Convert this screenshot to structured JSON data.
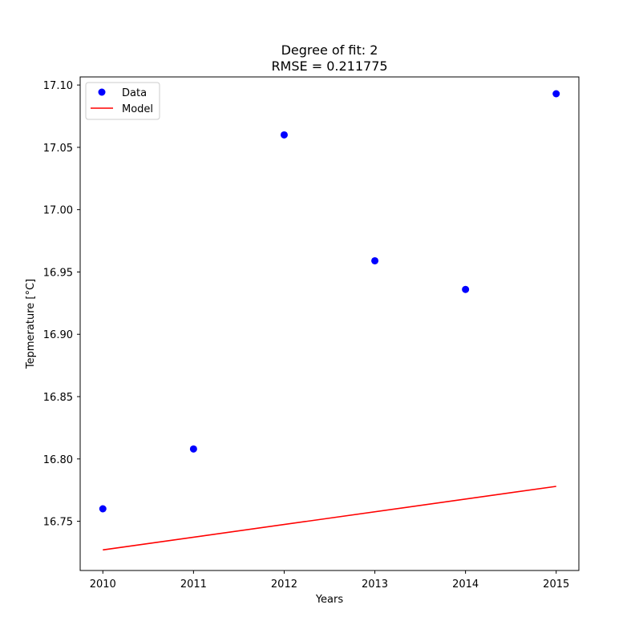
{
  "chart_data": {
    "type": "scatter",
    "title": [
      "Degree of fit: 2",
      "RMSE = 0.211775"
    ],
    "xlabel": "Years",
    "ylabel": "Tepmerature [°C]",
    "xlim": [
      2009.75,
      2015.25
    ],
    "ylim": [
      16.7105,
      17.1065
    ],
    "xticks": [
      2010,
      2011,
      2012,
      2013,
      2014,
      2015
    ],
    "yticks": [
      "16.75",
      "16.80",
      "16.85",
      "16.90",
      "16.95",
      "17.00",
      "17.05",
      "17.10"
    ],
    "grid": false,
    "legend_position": "top-left",
    "series": [
      {
        "name": "Data",
        "kind": "points",
        "color": "#0000ff",
        "x": [
          2010,
          2011,
          2012,
          2013,
          2014,
          2015
        ],
        "y": [
          16.76,
          16.808,
          17.06,
          16.959,
          16.936,
          17.093
        ]
      },
      {
        "name": "Model",
        "kind": "line",
        "color": "#ff0000",
        "x": [
          2010,
          2015
        ],
        "y": [
          16.727,
          16.778
        ]
      }
    ]
  }
}
